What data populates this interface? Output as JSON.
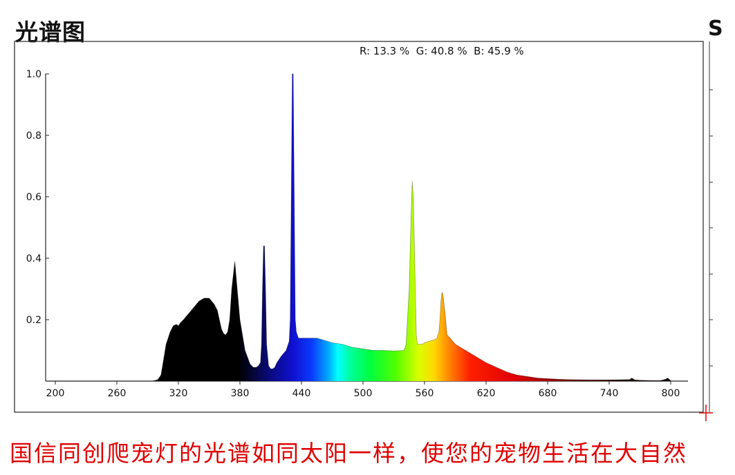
{
  "header": {
    "title": "光谱图",
    "corner_glyph": "S"
  },
  "rgb_readout": "R: 13.3 %  G: 40.8 %  B: 45.9 %",
  "caption": "国信同创爬宠灯的光谱如同太阳一样，使您的宠物生活在大自然",
  "chart_data": {
    "type": "area",
    "title": "光谱图",
    "xlabel": "",
    "ylabel": "",
    "xlim": [
      200,
      810
    ],
    "ylim": [
      0,
      1.0
    ],
    "x_ticks": [
      "200",
      "260",
      "320",
      "380",
      "440",
      "500",
      "560",
      "620",
      "680",
      "740",
      "800"
    ],
    "y_ticks": [
      "0.2",
      "0.4",
      "0.6",
      "0.8",
      "1.0"
    ],
    "grid": false,
    "series": [
      {
        "values_x": [
          200,
          295,
          300,
          303,
          305,
          308,
          312,
          315,
          318,
          320,
          322,
          325,
          330,
          335,
          340,
          345,
          350,
          355,
          358,
          360,
          362,
          364,
          366,
          368,
          370,
          372,
          375,
          380,
          385,
          390,
          393,
          396,
          398,
          400,
          401,
          402,
          403,
          404,
          405,
          406,
          408,
          410,
          412,
          414,
          416,
          418,
          420,
          425,
          428,
          429,
          430,
          431,
          432,
          433,
          434,
          435,
          437,
          440,
          445,
          450,
          455,
          460,
          465,
          470,
          480,
          490,
          500,
          510,
          520,
          530,
          540,
          542,
          545,
          547,
          548,
          549,
          550,
          551,
          552,
          553,
          555,
          558,
          560,
          565,
          570,
          572,
          574,
          575,
          576,
          577,
          578,
          580,
          582,
          585,
          590,
          600,
          610,
          620,
          630,
          640,
          650,
          660,
          670,
          680,
          690,
          700,
          720,
          740,
          760,
          762,
          765,
          770,
          780,
          790,
          795,
          797,
          800
        ],
        "values_y": [
          0,
          0,
          0.005,
          0.02,
          0.06,
          0.12,
          0.16,
          0.18,
          0.185,
          0.18,
          0.19,
          0.2,
          0.22,
          0.24,
          0.26,
          0.27,
          0.27,
          0.25,
          0.23,
          0.2,
          0.17,
          0.155,
          0.15,
          0.16,
          0.2,
          0.3,
          0.39,
          0.2,
          0.1,
          0.055,
          0.045,
          0.045,
          0.05,
          0.06,
          0.12,
          0.3,
          0.44,
          0.44,
          0.3,
          0.12,
          0.05,
          0.04,
          0.04,
          0.045,
          0.06,
          0.07,
          0.08,
          0.1,
          0.13,
          0.2,
          0.6,
          1.0,
          1.0,
          0.6,
          0.2,
          0.16,
          0.14,
          0.14,
          0.14,
          0.14,
          0.14,
          0.135,
          0.13,
          0.125,
          0.12,
          0.11,
          0.105,
          0.1,
          0.1,
          0.098,
          0.1,
          0.12,
          0.3,
          0.55,
          0.65,
          0.6,
          0.45,
          0.3,
          0.15,
          0.12,
          0.12,
          0.12,
          0.125,
          0.13,
          0.135,
          0.14,
          0.16,
          0.2,
          0.26,
          0.29,
          0.28,
          0.22,
          0.15,
          0.14,
          0.12,
          0.1,
          0.08,
          0.06,
          0.045,
          0.03,
          0.02,
          0.015,
          0.01,
          0.008,
          0.006,
          0.005,
          0.004,
          0.004,
          0.005,
          0.01,
          0.004,
          0.003,
          0.002,
          0.002,
          0.006,
          0.01,
          0.002
        ]
      }
    ]
  }
}
